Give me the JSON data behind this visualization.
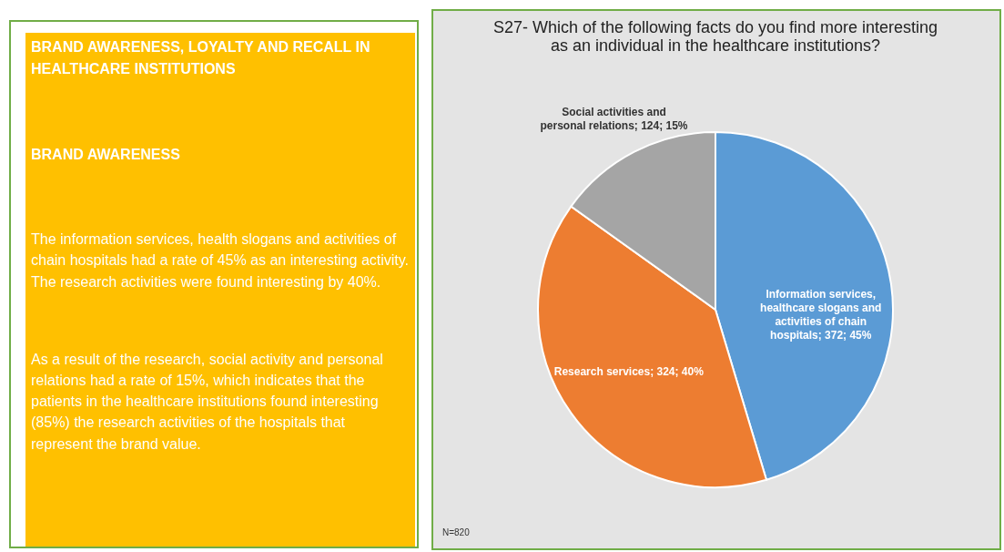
{
  "chart_data": [
    {
      "type": "other",
      "title": "BRAND AWARENESS, LOYALTY AND RECALL IN HEALTHCARE INSTITUTIONS",
      "subtitle": "BRAND AWARENESS",
      "annotations": [
        "The information services, health slogans and activities of chain hospitals had a rate of 45% as an interesting activity. The research activities were found interesting by 40%.",
        "As a result of the research, social activity and personal relations had a rate of 15%, which indicates that the patients in the healthcare institutions found interesting (85%) the research activities of the hospitals that represent the brand value."
      ]
    },
    {
      "type": "pie",
      "title": "S27- Which of the following facts do you find more interesting as an individual in the healthcare institutions?",
      "categories": [
        "Information services, healthcare slogans and activities of chain hospitals",
        "Research services",
        "Social activities and personal relations"
      ],
      "values": [
        372,
        324,
        124
      ],
      "value_labels": [
        "372; 45%",
        "324; 40%",
        "124; 15%"
      ],
      "colors": [
        "#5b9bd5",
        "#ed7d31",
        "#a5a5a5"
      ],
      "legend": false,
      "annotations": [
        "N=820"
      ]
    }
  ]
}
